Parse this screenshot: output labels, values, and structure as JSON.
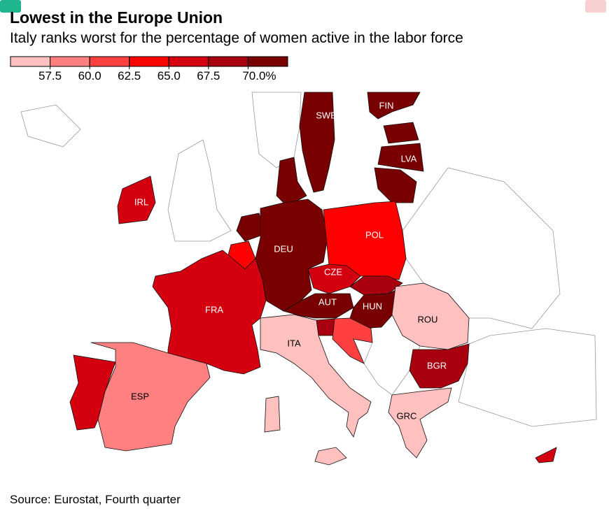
{
  "header": {
    "title": "Lowest in the Europe Union",
    "subtitle": "Italy ranks worst for the percentage of women active in the labor force"
  },
  "legend": {
    "lim": [
      55,
      72.5
    ],
    "colors": [
      "#ffc0c0",
      "#ff8080",
      "#ff4040",
      "#ff0000",
      "#d40010",
      "#a8000f",
      "#780000"
    ],
    "ticks": [
      57.5,
      {
        "value": 60,
        "label": "60.0"
      },
      62.5,
      {
        "value": 65,
        "label": "65.0"
      },
      67.5,
      {
        "value": 70,
        "label": "70.0%"
      }
    ]
  },
  "countries": [
    {
      "label": "SWE",
      "value": 72
    },
    {
      "label": "FIN",
      "value": 71
    },
    {
      "label": null,
      "value": 71
    },
    {
      "label": "LVA",
      "value": 71
    },
    {
      "label": null,
      "value": 71
    },
    {
      "label": null,
      "value": 72
    },
    {
      "label": "IRL",
      "value": 66
    },
    {
      "label": null,
      "value": 71
    },
    {
      "label": null,
      "value": 63
    },
    {
      "label": "DEU",
      "value": 72
    },
    {
      "label": "POL",
      "value": 64
    },
    {
      "label": "CZE",
      "value": 66
    },
    {
      "label": null,
      "value": 68
    },
    {
      "label": "AUT",
      "value": 70.5
    },
    {
      "label": "HUN",
      "value": 71
    },
    {
      "label": null,
      "value": 68
    },
    {
      "label": null,
      "value": 61
    },
    {
      "label": "FRA",
      "value": 66
    },
    {
      "label": "ESP",
      "value": 59
    },
    {
      "label": null,
      "value": 67
    },
    {
      "label": "ITA",
      "value": 55
    },
    {
      "label": "ROU",
      "value": 56
    },
    {
      "label": "BGR",
      "value": 68
    },
    {
      "label": "GRC",
      "value": 56
    },
    {
      "label": null,
      "value": 67
    }
  ],
  "source": "Source: Eurostat, Fourth quarter"
}
